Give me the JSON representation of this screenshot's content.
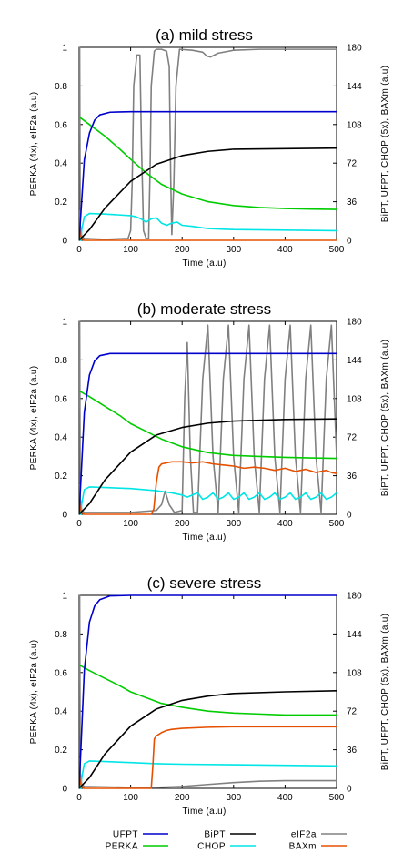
{
  "colors": {
    "UFPT": "#0000cc",
    "BiPT": "#000000",
    "eIF2a": "#808080",
    "PERKA": "#00cc00",
    "CHOP": "#00e5e5",
    "BAXm": "#e55000"
  },
  "legend": {
    "placement": "bottom",
    "entries": [
      "UFPT",
      "BiPT",
      "eIF2a",
      "PERKA",
      "CHOP",
      "BAXm"
    ]
  },
  "chart_data": [
    {
      "type": "line",
      "title": "(a) mild stress",
      "xlabel": "Time (a.u)",
      "ylabel": "PERKA (4x), eIF2a (a.u)",
      "y2label": "BiPT, UFPT, CHOP (5x), BAXm (a.u)",
      "xlim": [
        0,
        500
      ],
      "ylim": [
        0,
        1
      ],
      "y2lim": [
        0,
        180
      ],
      "xticks": [
        "0",
        "100",
        "200",
        "300",
        "400",
        "500"
      ],
      "yticks": [
        "0",
        "0.2",
        "0.4",
        "0.6",
        "0.8",
        "1"
      ],
      "y2ticks": [
        "0",
        "36",
        "72",
        "108",
        "144",
        "180"
      ],
      "grid": false,
      "series": [
        {
          "name": "UFPT",
          "axis": "right",
          "x": [
            0,
            10,
            20,
            30,
            40,
            60,
            100,
            200,
            300,
            400,
            500
          ],
          "values": [
            0,
            75,
            100,
            112,
            117,
            119.5,
            120,
            120,
            120,
            120,
            120
          ]
        },
        {
          "name": "BiPT",
          "axis": "right",
          "x": [
            0,
            20,
            50,
            100,
            150,
            200,
            250,
            300,
            400,
            500
          ],
          "values": [
            0,
            10,
            30,
            55,
            71,
            79,
            83,
            85,
            85.5,
            86
          ]
        },
        {
          "name": "eIF2a",
          "axis": "left",
          "x": [
            0,
            1,
            2,
            5,
            10,
            50,
            95,
            100,
            103,
            106,
            112,
            118,
            121,
            125,
            130,
            135,
            138,
            140,
            146,
            150,
            160,
            170,
            175,
            178,
            180,
            184,
            188,
            195,
            220,
            240,
            248,
            255,
            270,
            300,
            350,
            500
          ],
          "values": [
            0.55,
            1,
            0.08,
            0.02,
            0.01,
            0.005,
            0.01,
            0.05,
            0.3,
            0.8,
            0.96,
            0.96,
            0.5,
            0.05,
            0.01,
            0.01,
            0.4,
            0.8,
            0.98,
            0.99,
            0.99,
            0.98,
            0.9,
            0.3,
            0.03,
            0.3,
            0.8,
            0.99,
            0.985,
            0.975,
            0.955,
            0.95,
            0.97,
            0.985,
            0.99,
            0.99
          ]
        },
        {
          "name": "PERKA",
          "axis": "left",
          "x": [
            0,
            20,
            50,
            80,
            100,
            130,
            160,
            200,
            250,
            300,
            350,
            400,
            450,
            500
          ],
          "values": [
            0.64,
            0.6,
            0.54,
            0.47,
            0.42,
            0.35,
            0.29,
            0.24,
            0.2,
            0.18,
            0.17,
            0.165,
            0.162,
            0.16
          ]
        },
        {
          "name": "CHOP",
          "axis": "right",
          "x": [
            0,
            3,
            5,
            10,
            20,
            50,
            100,
            110,
            120,
            130,
            140,
            150,
            160,
            170,
            180,
            190,
            200,
            220,
            250,
            300,
            400,
            500
          ],
          "values": [
            16,
            0,
            10,
            22,
            25,
            24.5,
            23,
            22,
            20,
            17,
            20,
            21,
            16,
            14,
            16,
            17,
            14,
            13,
            11,
            10,
            9.5,
            9
          ]
        },
        {
          "name": "BAXm",
          "axis": "right",
          "x": [
            0,
            1,
            3,
            6,
            10,
            500
          ],
          "values": [
            28,
            12,
            4,
            1,
            0,
            0
          ]
        }
      ]
    },
    {
      "type": "line",
      "title": "(b) moderate stress",
      "xlabel": "Time (a.u)",
      "ylabel": "PERKA (4x), eIF2a (a.u)",
      "y2label": "BiPT, UFPT, CHOP (5x), BAXm (a.u)",
      "xlim": [
        0,
        500
      ],
      "ylim": [
        0,
        1
      ],
      "y2lim": [
        0,
        180
      ],
      "xticks": [
        "0",
        "100",
        "200",
        "300",
        "400",
        "500"
      ],
      "yticks": [
        "0",
        "0.2",
        "0.4",
        "0.6",
        "0.8",
        "1"
      ],
      "y2ticks": [
        "0",
        "36",
        "72",
        "108",
        "144",
        "180"
      ],
      "grid": false,
      "series": [
        {
          "name": "UFPT",
          "axis": "right",
          "x": [
            0,
            10,
            20,
            30,
            40,
            60,
            100,
            200,
            300,
            400,
            500
          ],
          "values": [
            0,
            95,
            130,
            143,
            148,
            150,
            150,
            150,
            150,
            150,
            150
          ]
        },
        {
          "name": "BiPT",
          "axis": "right",
          "x": [
            0,
            20,
            50,
            100,
            150,
            200,
            250,
            300,
            400,
            500
          ],
          "values": [
            0,
            10,
            32,
            58,
            74,
            81,
            85,
            87,
            88.5,
            89
          ]
        },
        {
          "name": "eIF2a",
          "axis": "left",
          "x": [
            0,
            1,
            2,
            5,
            10,
            100,
            150,
            160,
            167,
            175,
            185,
            200,
            205,
            210,
            216,
            222,
            230,
            240,
            250,
            260,
            270,
            280,
            290,
            300,
            310,
            320,
            330,
            340,
            350,
            360,
            370,
            380,
            390,
            400,
            410,
            420,
            430,
            440,
            450,
            460,
            470,
            480,
            490,
            500
          ],
          "values": [
            0.55,
            1,
            0.08,
            0.02,
            0.01,
            0.01,
            0.02,
            0.05,
            0.12,
            0.05,
            0.01,
            0.02,
            0.6,
            0.89,
            0.3,
            0.01,
            0.01,
            0.7,
            0.98,
            0.3,
            0.01,
            0.7,
            0.98,
            0.3,
            0.01,
            0.7,
            0.98,
            0.3,
            0.01,
            0.7,
            0.98,
            0.3,
            0.01,
            0.7,
            0.98,
            0.3,
            0.01,
            0.7,
            0.98,
            0.3,
            0.01,
            0.7,
            0.98,
            0.3
          ]
        },
        {
          "name": "PERKA",
          "axis": "left",
          "x": [
            0,
            20,
            50,
            80,
            100,
            130,
            160,
            200,
            250,
            300,
            350,
            400,
            450,
            500
          ],
          "values": [
            0.64,
            0.61,
            0.56,
            0.51,
            0.47,
            0.43,
            0.39,
            0.35,
            0.32,
            0.305,
            0.3,
            0.295,
            0.292,
            0.29
          ]
        },
        {
          "name": "CHOP",
          "axis": "right",
          "x": [
            0,
            3,
            5,
            10,
            20,
            50,
            100,
            150,
            180,
            200,
            210,
            220,
            230,
            240,
            250,
            260,
            270,
            280,
            290,
            300,
            310,
            320,
            330,
            340,
            350,
            360,
            370,
            380,
            390,
            400,
            410,
            420,
            430,
            440,
            450,
            460,
            470,
            480,
            490,
            500
          ],
          "values": [
            16,
            0,
            10,
            23,
            25.5,
            25,
            24,
            22,
            20,
            18,
            16,
            18,
            20,
            14,
            16,
            20,
            14,
            16,
            20,
            14,
            16,
            20,
            14,
            16,
            20,
            14,
            16,
            20,
            14,
            16,
            20,
            14,
            16,
            20,
            14,
            16,
            20,
            14,
            16,
            20
          ]
        },
        {
          "name": "BAXm",
          "axis": "right",
          "x": [
            0,
            1,
            3,
            6,
            10,
            140,
            145,
            150,
            155,
            160,
            170,
            180,
            200,
            220,
            240,
            260,
            280,
            300,
            320,
            340,
            360,
            380,
            400,
            420,
            440,
            460,
            480,
            490,
            500
          ],
          "values": [
            28,
            12,
            4,
            1,
            0,
            0,
            5,
            30,
            44,
            47,
            48,
            49,
            49,
            48,
            49,
            47,
            46,
            45,
            43,
            44,
            43,
            41,
            43,
            40,
            42,
            39,
            41,
            39,
            38
          ]
        }
      ]
    },
    {
      "type": "line",
      "title": "(c) severe stress",
      "xlabel": "Time (a.u)",
      "ylabel": "PERKA (4x), eIF2a (a.u)",
      "y2label": "BiPT, UFPT, CHOP (5x), BAXm (a.u)",
      "xlim": [
        0,
        500
      ],
      "ylim": [
        0,
        1
      ],
      "y2lim": [
        0,
        180
      ],
      "xticks": [
        "0",
        "100",
        "200",
        "300",
        "400",
        "500"
      ],
      "yticks": [
        "0",
        "0.2",
        "0.4",
        "0.6",
        "0.8",
        "1"
      ],
      "y2ticks": [
        "0",
        "36",
        "72",
        "108",
        "144",
        "180"
      ],
      "grid": false,
      "series": [
        {
          "name": "UFPT",
          "axis": "right",
          "x": [
            0,
            10,
            20,
            30,
            40,
            60,
            100,
            200,
            300,
            400,
            500
          ],
          "values": [
            0,
            110,
            155,
            170,
            176,
            179.5,
            180,
            180,
            180,
            180,
            180
          ]
        },
        {
          "name": "BiPT",
          "axis": "right",
          "x": [
            0,
            20,
            50,
            100,
            150,
            200,
            250,
            300,
            400,
            500
          ],
          "values": [
            0,
            10,
            32,
            58,
            74,
            82,
            86,
            88.5,
            90,
            91
          ]
        },
        {
          "name": "eIF2a",
          "axis": "left",
          "x": [
            0,
            1,
            2,
            5,
            10,
            100,
            150,
            200,
            250,
            300,
            350,
            400,
            450,
            500
          ],
          "values": [
            0.55,
            1,
            0.08,
            0.02,
            0.01,
            0.005,
            0.005,
            0.01,
            0.02,
            0.03,
            0.037,
            0.04,
            0.04,
            0.04
          ]
        },
        {
          "name": "PERKA",
          "axis": "left",
          "x": [
            0,
            20,
            50,
            80,
            100,
            130,
            160,
            200,
            250,
            300,
            350,
            400,
            450,
            500
          ],
          "values": [
            0.64,
            0.61,
            0.57,
            0.53,
            0.5,
            0.47,
            0.44,
            0.42,
            0.4,
            0.39,
            0.385,
            0.38,
            0.38,
            0.38
          ]
        },
        {
          "name": "CHOP",
          "axis": "right",
          "x": [
            0,
            3,
            5,
            10,
            20,
            50,
            100,
            150,
            200,
            300,
            400,
            500
          ],
          "values": [
            16,
            0,
            10,
            23,
            25.5,
            25,
            24,
            23,
            22.5,
            22,
            21.5,
            21
          ]
        },
        {
          "name": "BAXm",
          "axis": "right",
          "x": [
            0,
            1,
            3,
            6,
            10,
            140,
            143,
            146,
            150,
            160,
            170,
            180,
            200,
            250,
            300,
            400,
            500
          ],
          "values": [
            28,
            12,
            4,
            1,
            0,
            0,
            20,
            46,
            49,
            52,
            54,
            55,
            56,
            57,
            57.5,
            57.5,
            57.5
          ]
        }
      ]
    }
  ]
}
